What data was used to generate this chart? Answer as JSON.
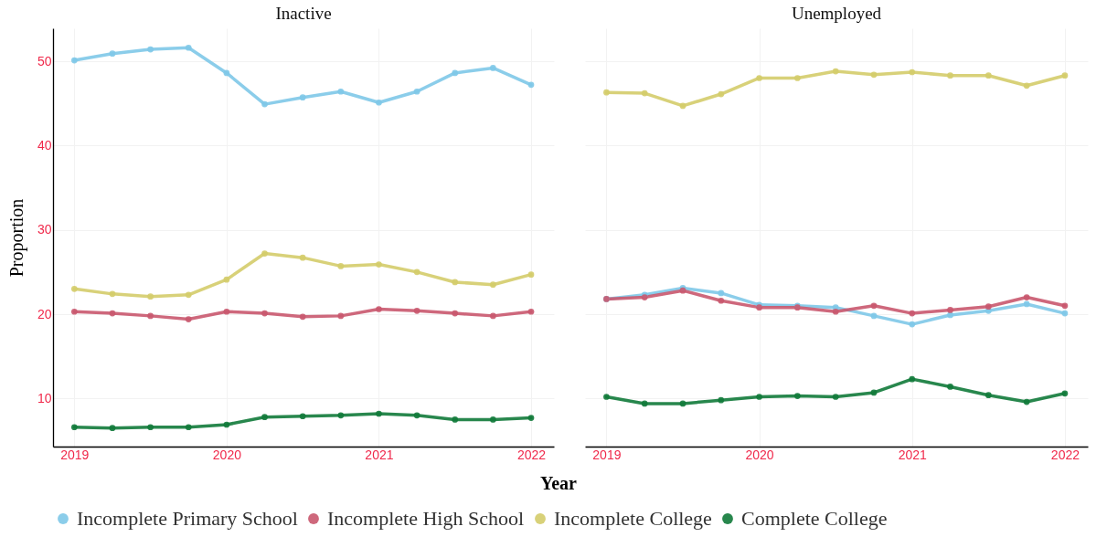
{
  "chart_data": [
    {
      "type": "line",
      "title": "Inactive",
      "xlabel": "Year",
      "ylabel": "Proportion",
      "x": [
        2019,
        2019.25,
        2019.5,
        2019.75,
        2020,
        2020.25,
        2020.5,
        2020.75,
        2021,
        2021.25,
        2021.5,
        2021.75,
        2022
      ],
      "xlim": [
        2018.86,
        2022.15
      ],
      "xticks": [
        2019,
        2020,
        2021,
        2022
      ],
      "ylim": [
        4.3,
        53.9
      ],
      "yticks": [
        10,
        20,
        30,
        40,
        50
      ],
      "grid": true,
      "legend": "bottom",
      "marker": "circle",
      "series": [
        {
          "name": "Incomplete Primary School",
          "color": "#7ec8e8",
          "values": [
            50.1,
            50.9,
            51.4,
            51.6,
            48.6,
            44.9,
            45.7,
            46.4,
            45.1,
            46.4,
            48.6,
            49.2,
            47.2
          ]
        },
        {
          "name": "Incomplete High School",
          "color": "#c9586e",
          "values": [
            20.3,
            20.1,
            19.8,
            19.4,
            20.3,
            20.1,
            19.7,
            19.8,
            20.6,
            20.4,
            20.1,
            19.8,
            20.3
          ]
        },
        {
          "name": "Incomplete College",
          "color": "#d4cc6a",
          "values": [
            23.0,
            22.4,
            22.1,
            22.3,
            24.1,
            27.2,
            26.7,
            25.7,
            25.9,
            25.0,
            23.8,
            23.5,
            24.7
          ]
        },
        {
          "name": "Complete College",
          "color": "#117a3a",
          "values": [
            6.6,
            6.5,
            6.6,
            6.6,
            6.9,
            7.8,
            7.9,
            8.0,
            8.2,
            8.0,
            7.5,
            7.5,
            7.7
          ]
        }
      ]
    },
    {
      "type": "line",
      "title": "Unemployed",
      "x": [
        2019,
        2019.25,
        2019.5,
        2019.75,
        2020,
        2020.25,
        2020.5,
        2020.75,
        2021,
        2021.25,
        2021.5,
        2021.75,
        2022
      ],
      "xlim": [
        2018.86,
        2022.15
      ],
      "xticks": [
        2019,
        2020,
        2021,
        2022
      ],
      "ylim": [
        4.3,
        53.9
      ],
      "yticks": [
        10,
        20,
        30,
        40,
        50
      ],
      "tick_labels": "x",
      "grid": true,
      "marker": "circle",
      "series": [
        {
          "color": "#7ec8e8",
          "values": [
            21.8,
            22.3,
            23.1,
            22.5,
            21.1,
            21.0,
            20.8,
            19.8,
            18.8,
            19.9,
            20.4,
            21.2,
            20.1
          ]
        },
        {
          "color": "#c9586e",
          "values": [
            21.8,
            22.0,
            22.8,
            21.6,
            20.8,
            20.8,
            20.3,
            21.0,
            20.1,
            20.5,
            20.9,
            22.0,
            21.0
          ]
        },
        {
          "color": "#d4cc6a",
          "values": [
            46.3,
            46.2,
            44.7,
            46.1,
            48.0,
            48.0,
            48.8,
            48.4,
            48.7,
            48.3,
            48.3,
            47.1,
            48.3
          ]
        },
        {
          "color": "#117a3a",
          "values": [
            10.2,
            9.4,
            9.4,
            9.8,
            10.2,
            10.3,
            10.2,
            10.7,
            12.3,
            11.4,
            10.4,
            9.6,
            10.6
          ]
        }
      ]
    }
  ]
}
